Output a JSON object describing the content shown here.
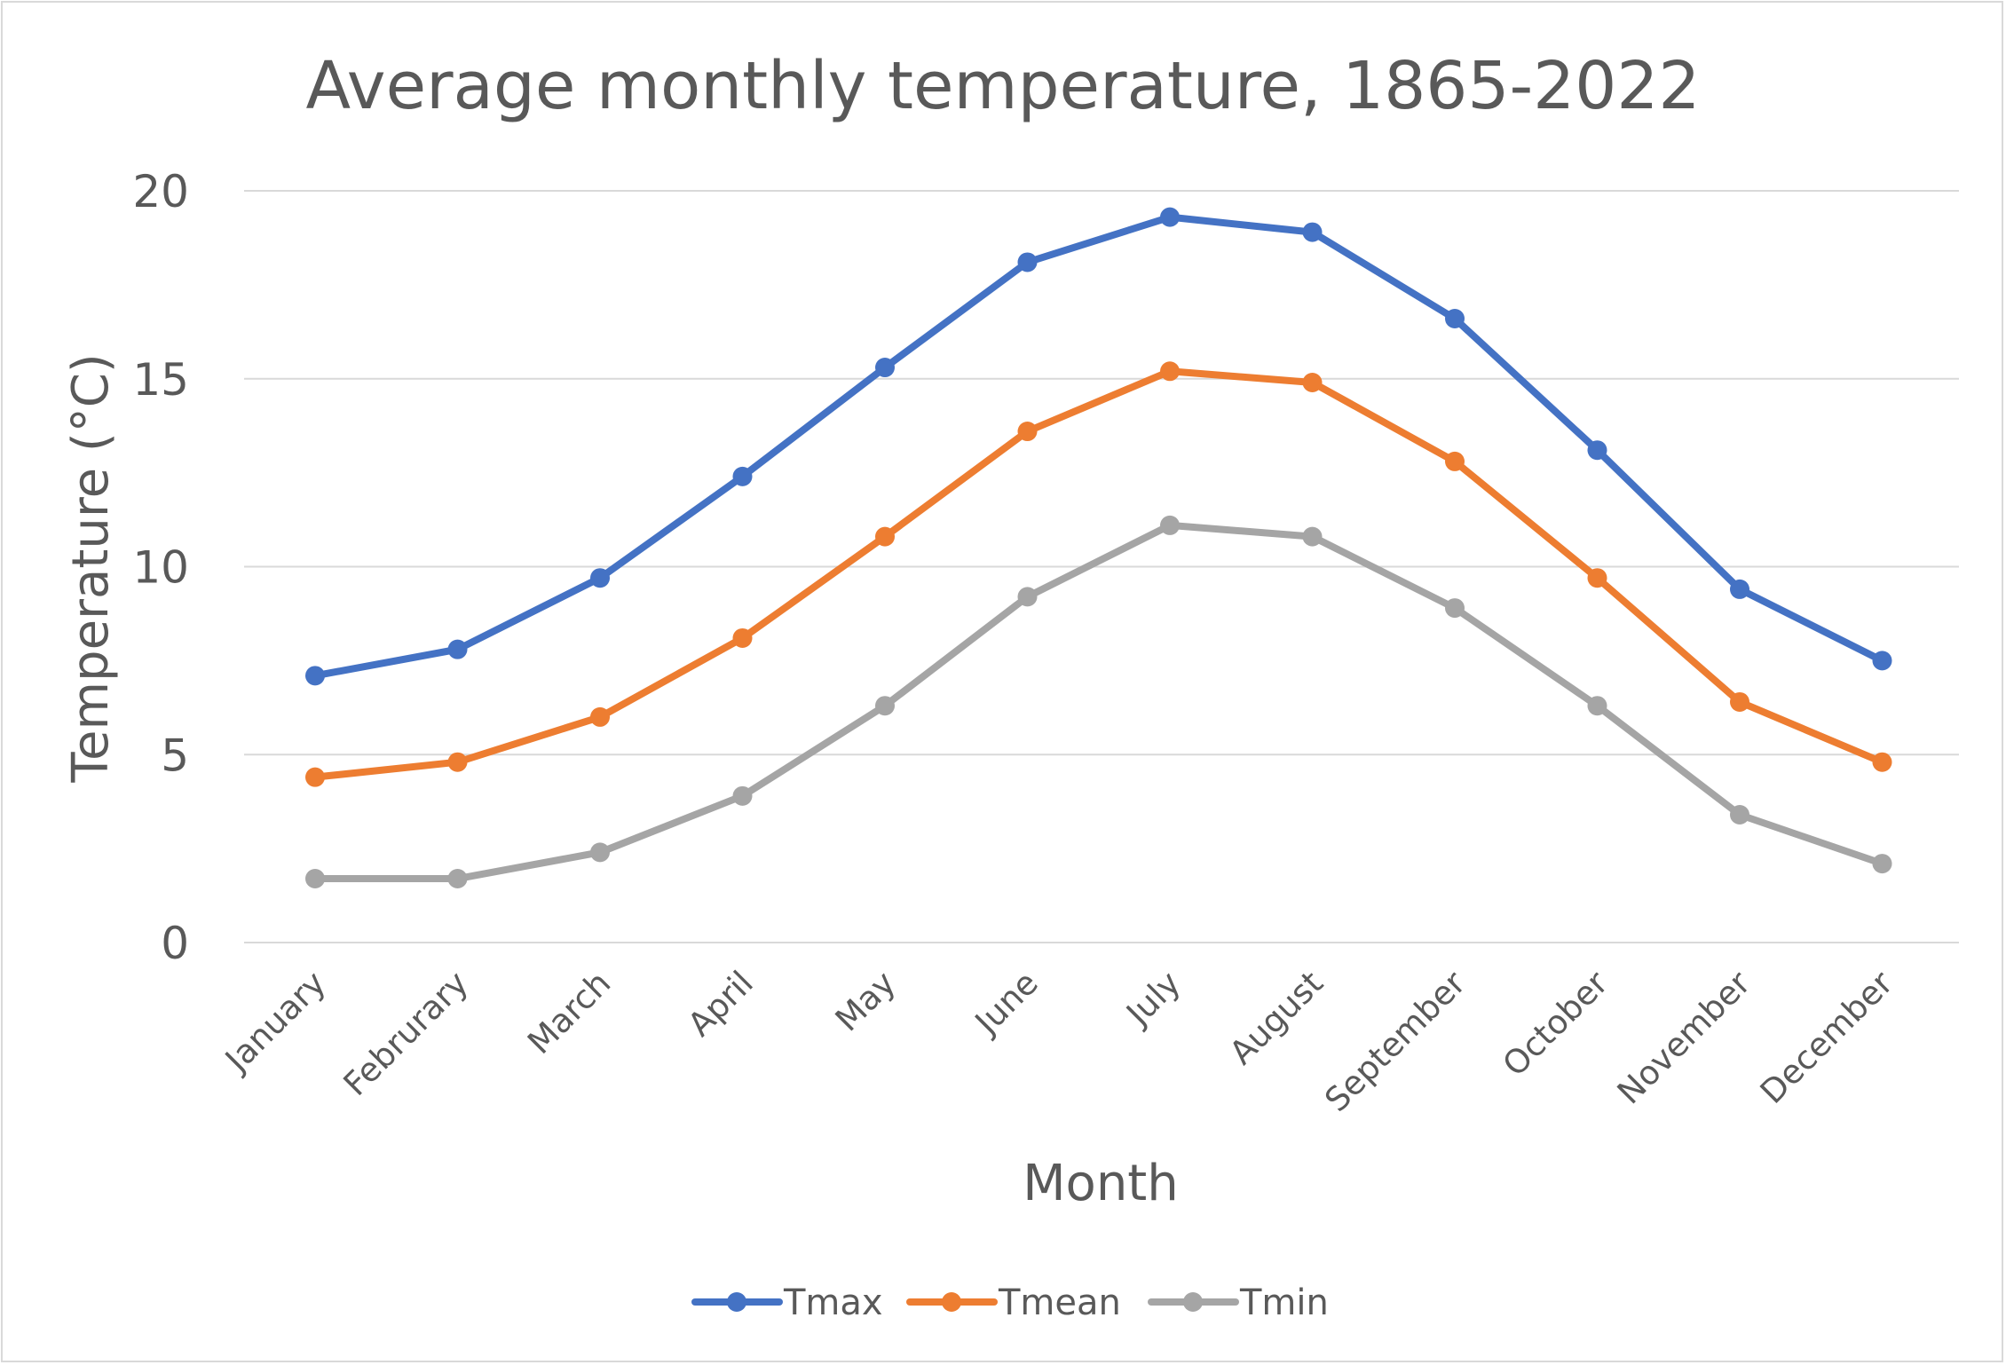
{
  "chart_data": {
    "type": "line",
    "title": "Average monthly temperature, 1865-2022",
    "xlabel": "Month",
    "ylabel": "Temperature (°C)",
    "categories": [
      "January",
      "Februrary",
      "March",
      "April",
      "May",
      "June",
      "July",
      "August",
      "September",
      "October",
      "November",
      "December"
    ],
    "ylim": [
      0,
      20
    ],
    "yticks": [
      "0",
      "5",
      "10",
      "15",
      "20"
    ],
    "grid": true,
    "legend_position": "bottom",
    "series": [
      {
        "name": "Tmax",
        "color": "#4472c4",
        "values": [
          7.1,
          7.8,
          9.7,
          12.4,
          15.3,
          18.1,
          19.3,
          18.9,
          16.6,
          13.1,
          9.4,
          7.5
        ]
      },
      {
        "name": "Tmean",
        "color": "#ed7d31",
        "values": [
          4.4,
          4.8,
          6.0,
          8.1,
          10.8,
          13.6,
          15.2,
          14.9,
          12.8,
          9.7,
          6.4,
          4.8
        ]
      },
      {
        "name": "Tmin",
        "color": "#a5a5a5",
        "values": [
          1.7,
          1.7,
          2.4,
          3.9,
          6.3,
          9.2,
          11.1,
          10.8,
          8.9,
          6.3,
          3.4,
          2.1
        ]
      }
    ]
  }
}
